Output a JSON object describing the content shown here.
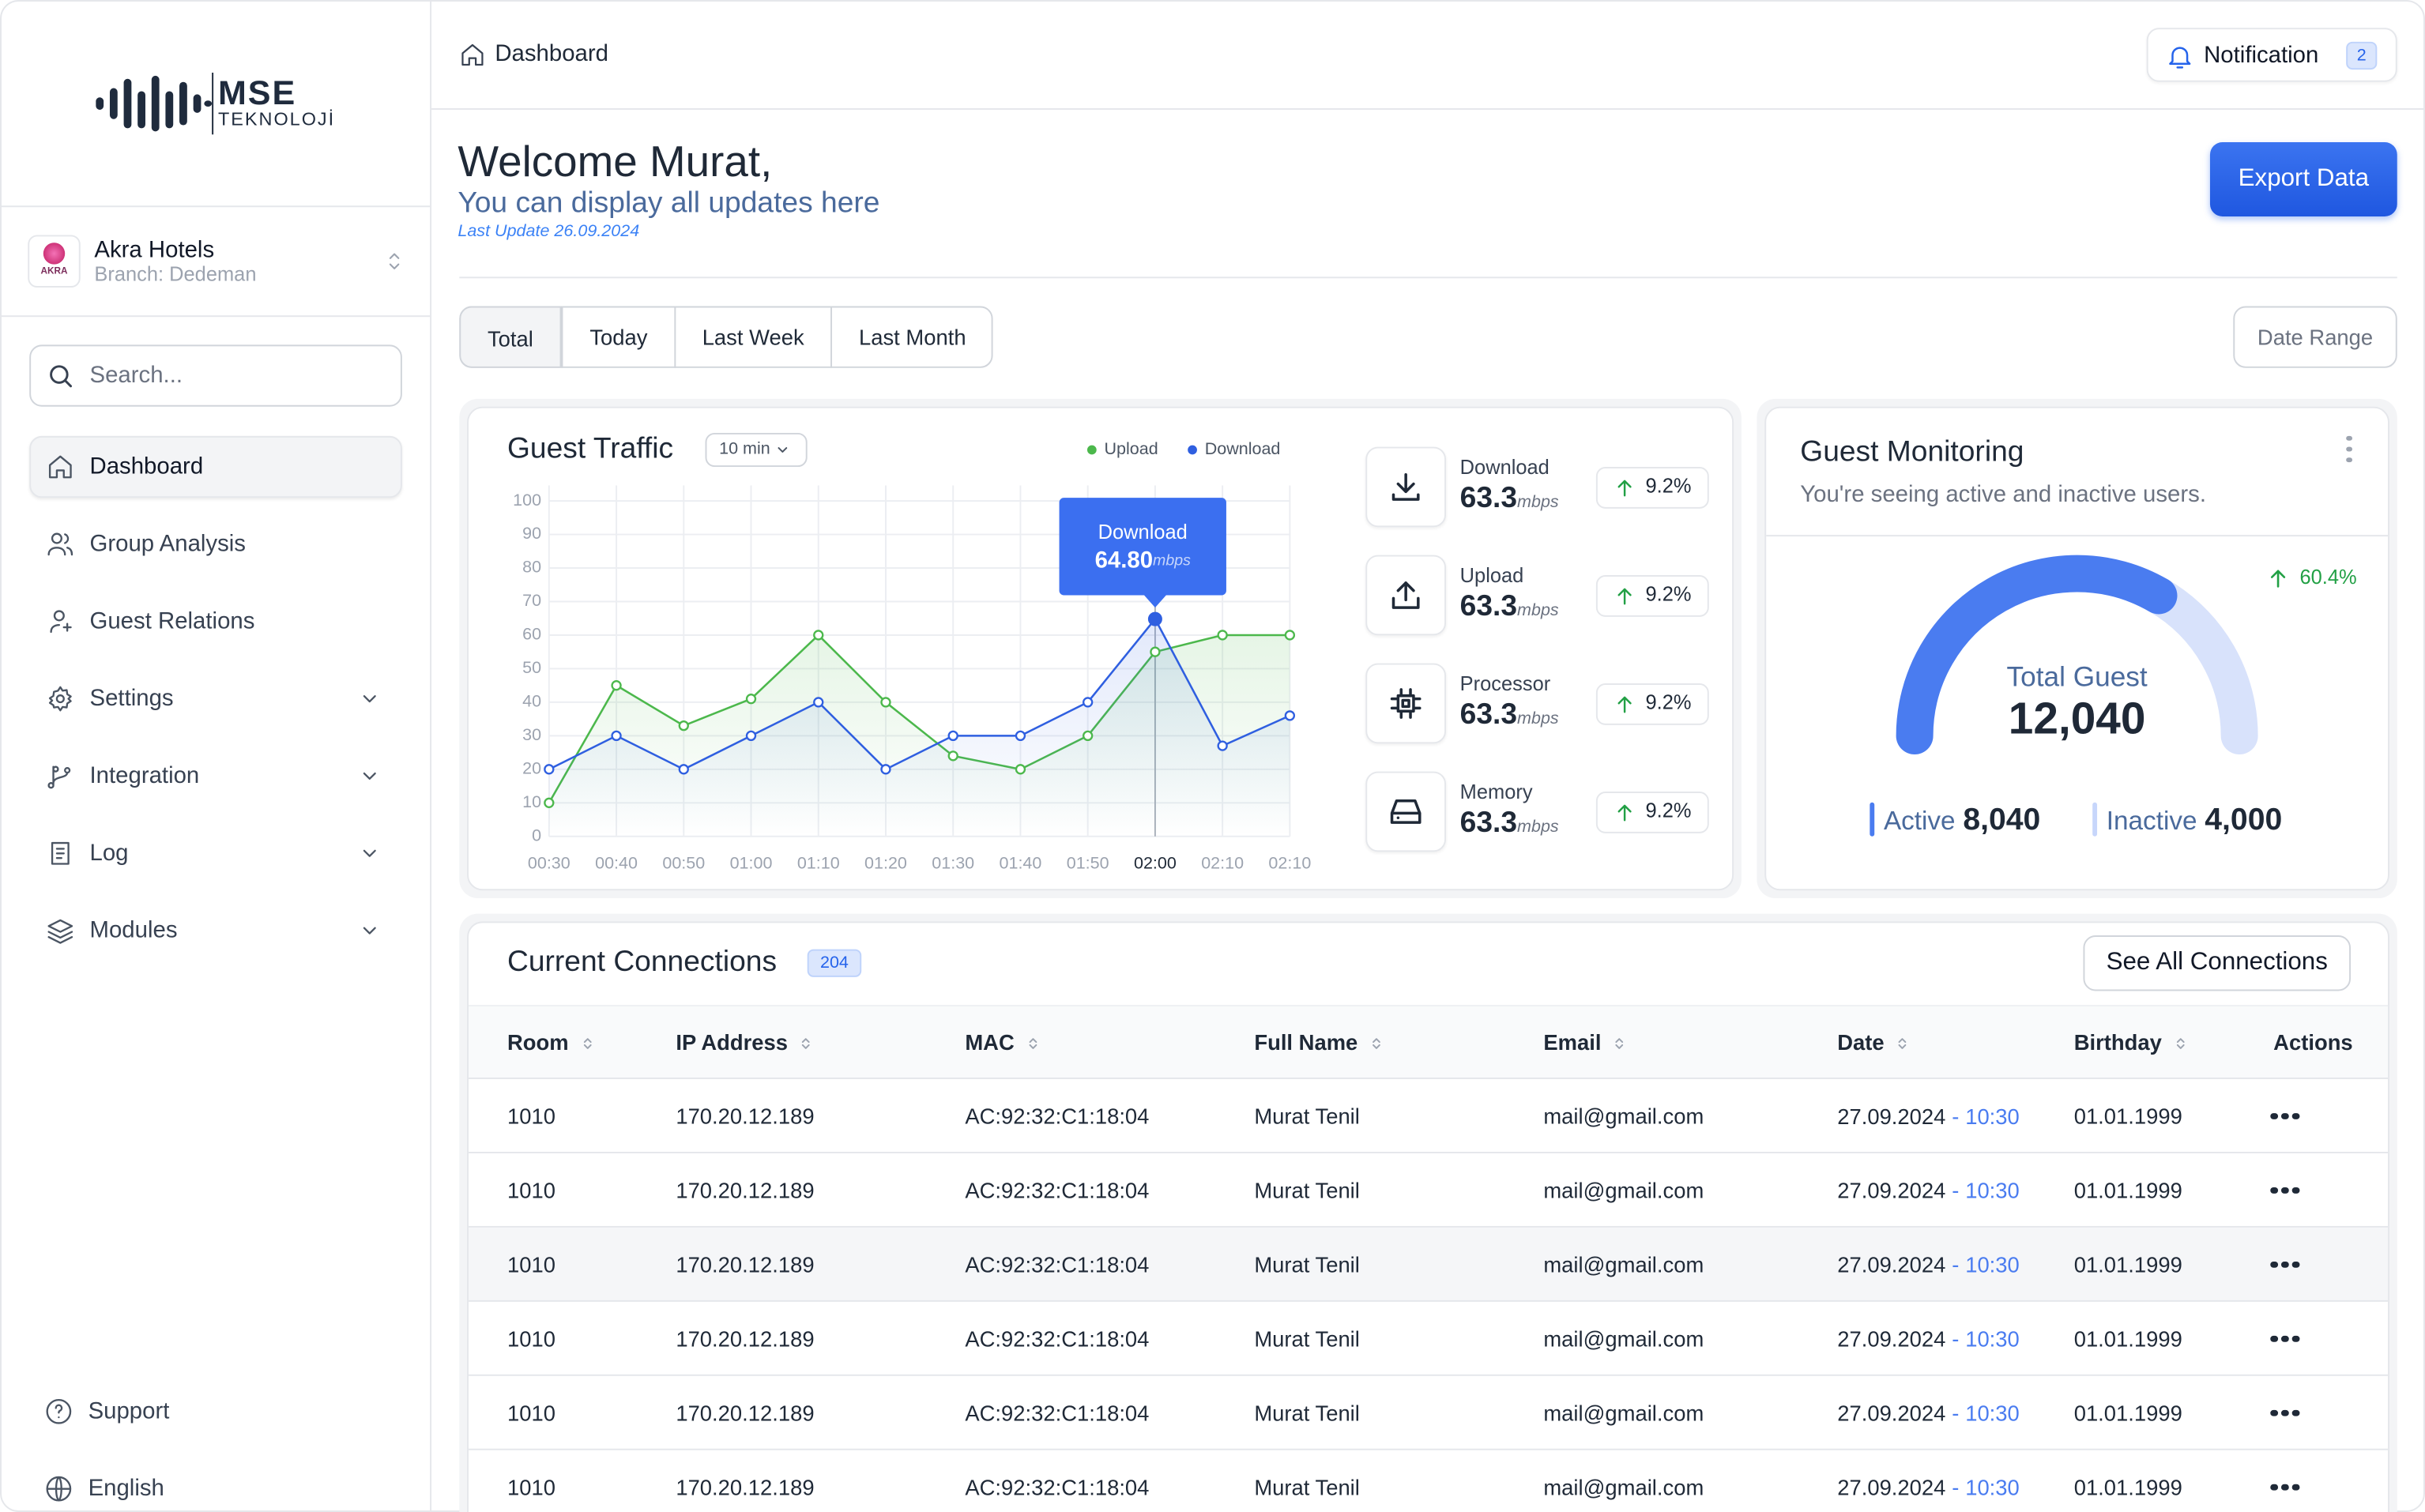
{
  "sidebar": {
    "logo": {
      "name": "MSE",
      "sub": "TEKNOLOJİ"
    },
    "hotel": {
      "logo_text": "AKRA",
      "name": "Akra Hotels",
      "branch": "Branch: Dedeman"
    },
    "search_placeholder": "Search...",
    "nav": [
      "Dashboard",
      "Group Analysis",
      "Guest Relations",
      "Settings",
      "Integration",
      "Log",
      "Modules"
    ],
    "footer": [
      "Support",
      "English"
    ]
  },
  "header": {
    "breadcrumb": "Dashboard",
    "notification": "Notification",
    "notification_count": "2"
  },
  "welcome": {
    "title": "Welcome Murat,",
    "subtitle": "You can display all updates here",
    "last_update": "Last Update 26.09.2024",
    "export": "Export Data"
  },
  "tabs": [
    "Total",
    "Today",
    "Last Week",
    "Last Month"
  ],
  "date_range": "Date Range",
  "guest_traffic": {
    "title": "Guest Traffic",
    "interval": "10 min",
    "chart_data": {
      "type": "line",
      "categories": [
        "00:30",
        "00:40",
        "00:50",
        "01:00",
        "01:10",
        "01:20",
        "01:30",
        "01:40",
        "01:50",
        "02:00",
        "02:10",
        "02:10"
      ],
      "series": [
        {
          "name": "Upload",
          "color": "#4cb84c",
          "values": [
            10,
            45,
            33,
            41,
            60,
            40,
            24,
            20,
            30,
            55,
            60,
            60
          ]
        },
        {
          "name": "Download",
          "color": "#2f5fe0",
          "values": [
            20,
            30,
            20,
            30,
            40,
            20,
            30,
            30,
            40,
            64.8,
            27,
            36
          ]
        }
      ],
      "ylim": [
        0,
        100
      ],
      "yticks": [
        0,
        10,
        20,
        30,
        40,
        50,
        60,
        70,
        80,
        90,
        100
      ],
      "grid": true
    },
    "tooltip": {
      "title": "Download",
      "value": "64.80",
      "unit": "mbps"
    },
    "stats": [
      {
        "label": "Download",
        "value": "63.3",
        "unit": "mbps",
        "change": "9.2%"
      },
      {
        "label": "Upload",
        "value": "63.3",
        "unit": "mbps",
        "change": "9.2%"
      },
      {
        "label": "Processor",
        "value": "63.3",
        "unit": "mbps",
        "change": "9.2%"
      },
      {
        "label": "Memory",
        "value": "63.3",
        "unit": "mbps",
        "change": "9.2%"
      }
    ]
  },
  "guest_monitoring": {
    "title": "Guest Monitoring",
    "subtitle": "You're seeing active and inactive users.",
    "change": "60.4%",
    "total_label": "Total Guest",
    "total": {
      "value": 12040,
      "label": "12,040"
    },
    "active_label": "Active",
    "active": {
      "value": 8040,
      "label": "8,040"
    },
    "inactive_label": "Inactive",
    "inactive": {
      "value": 4000,
      "label": "4,000"
    }
  },
  "connections": {
    "title": "Current Connections",
    "count": "204",
    "see_all": "See All Connections",
    "columns": [
      "Room",
      "IP Address",
      "MAC",
      "Full Name",
      "Email",
      "Date",
      "Birthday",
      "Actions"
    ],
    "date_separator": "-",
    "rows": [
      {
        "room": "1010",
        "ip": "170.20.12.189",
        "mac": "AC:92:32:C1:18:04",
        "name": "Murat Tenil",
        "email": "mail@gmail.com",
        "date": "27.09.2024",
        "time": "10:30",
        "birthday": "01.01.1999"
      },
      {
        "room": "1010",
        "ip": "170.20.12.189",
        "mac": "AC:92:32:C1:18:04",
        "name": "Murat Tenil",
        "email": "mail@gmail.com",
        "date": "27.09.2024",
        "time": "10:30",
        "birthday": "01.01.1999"
      },
      {
        "room": "1010",
        "ip": "170.20.12.189",
        "mac": "AC:92:32:C1:18:04",
        "name": "Murat Tenil",
        "email": "mail@gmail.com",
        "date": "27.09.2024",
        "time": "10:30",
        "birthday": "01.01.1999"
      },
      {
        "room": "1010",
        "ip": "170.20.12.189",
        "mac": "AC:92:32:C1:18:04",
        "name": "Murat Tenil",
        "email": "mail@gmail.com",
        "date": "27.09.2024",
        "time": "10:30",
        "birthday": "01.01.1999"
      },
      {
        "room": "1010",
        "ip": "170.20.12.189",
        "mac": "AC:92:32:C1:18:04",
        "name": "Murat Tenil",
        "email": "mail@gmail.com",
        "date": "27.09.2024",
        "time": "10:30",
        "birthday": "01.01.1999"
      },
      {
        "room": "1010",
        "ip": "170.20.12.189",
        "mac": "AC:92:32:C1:18:04",
        "name": "Murat Tenil",
        "email": "mail@gmail.com",
        "date": "27.09.2024",
        "time": "10:30",
        "birthday": "01.01.1999"
      }
    ]
  }
}
